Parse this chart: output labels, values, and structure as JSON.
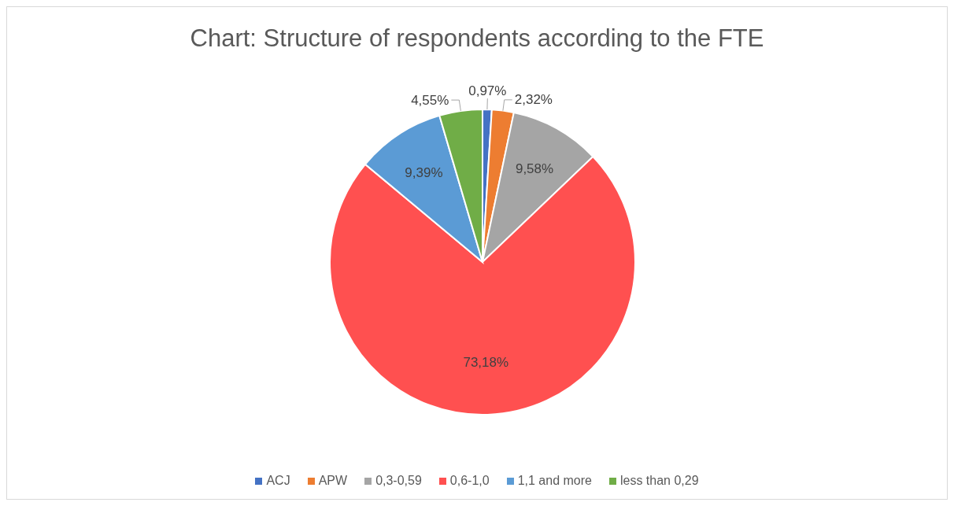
{
  "chart_data": {
    "type": "pie",
    "title": "Chart: Structure of respondents according to the FTE",
    "categories": [
      "ACJ",
      "APW",
      "0,3-0,59",
      "0,6-1,0",
      "1,1 and more",
      "less than 0,29"
    ],
    "values": [
      0.97,
      2.32,
      9.58,
      73.18,
      9.39,
      4.55
    ],
    "value_labels": [
      "0,97%",
      "2,32%",
      "9,58%",
      "73,18%",
      "9,39%",
      "4,55%"
    ],
    "colors": [
      "#4472c4",
      "#ed7d31",
      "#a5a5a5",
      "#ff5050",
      "#5b9bd5",
      "#70ad47"
    ],
    "legend": "bottom"
  }
}
